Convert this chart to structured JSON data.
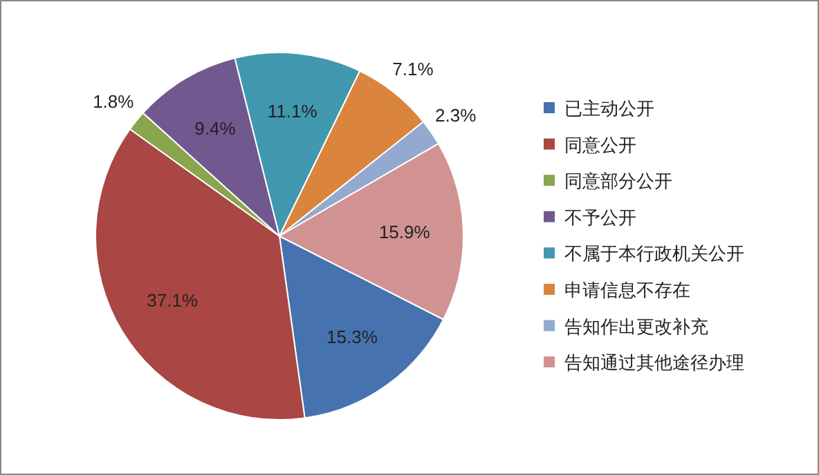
{
  "chart_data": {
    "type": "pie",
    "categories": [
      "已主动公开",
      "同意公开",
      "同意部分公开",
      "不予公开",
      "不属于本行政机关公开",
      "申请信息不存在",
      "告知作出更改补充",
      "告知通过其他途径办理"
    ],
    "values": [
      15.3,
      37.1,
      1.8,
      9.4,
      11.1,
      7.1,
      2.3,
      15.9
    ],
    "colors": [
      "#4672b0",
      "#aa4643",
      "#89a54e",
      "#71588f",
      "#4198af",
      "#db843d",
      "#93a9cf",
      "#d19392"
    ],
    "value_labels": [
      "15.3%",
      "37.1%",
      "1.8%",
      "9.4%",
      "11.1%",
      "7.1%",
      "2.3%",
      "15.9%"
    ],
    "legend": "right"
  }
}
